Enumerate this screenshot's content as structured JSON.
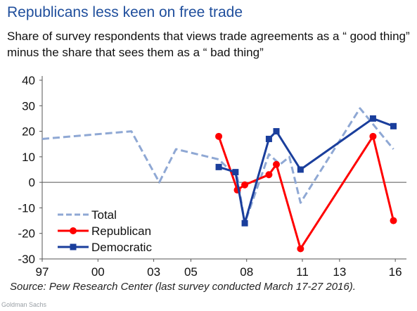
{
  "title": "Republicans less keen on free trade",
  "subtitle": "Share of survey respondents that views trade agreements as a “ good thing”  minus the share that sees them as a “ bad thing”",
  "source": "Source: Pew Research Center (last survey conducted March 17-27 2016).",
  "brand": "Goldman Sachs",
  "chart_data": {
    "type": "line",
    "title": "Republicans less keen on free trade",
    "xlabel": "",
    "ylabel": "",
    "xlim": [
      1997,
      2016.6
    ],
    "ylim": [
      -30,
      40
    ],
    "x_ticks": [
      1997,
      2000,
      2003,
      2005,
      2008,
      2011,
      2013,
      2016
    ],
    "x_tick_labels": [
      "97",
      "00",
      "03",
      "05",
      "08",
      "11",
      "13",
      "16"
    ],
    "y_ticks": [
      -30,
      -20,
      -10,
      0,
      10,
      20,
      30,
      40
    ],
    "y_tick_labels": [
      "-30",
      "-20",
      "-10",
      "0",
      "10",
      "20",
      "30",
      "40"
    ],
    "grid": false,
    "legend_position": "bottom-left",
    "series": [
      {
        "name": "Total",
        "style": "dashed",
        "color": "#8fa8d4",
        "marker": "none",
        "x": [
          1997,
          2001.8,
          2003.3,
          2004.2,
          2006.5,
          2007.5,
          2007.9,
          2009.2,
          2009.8,
          2010.3,
          2010.9,
          2014.1,
          2015.9
        ],
        "y": [
          17,
          20,
          0,
          13,
          9,
          2,
          -16,
          11,
          7,
          10,
          -8,
          29,
          13
        ]
      },
      {
        "name": "Republican",
        "style": "solid",
        "color": "#ff0000",
        "marker": "circle",
        "x": [
          2006.5,
          2007.5,
          2007.9,
          2009.2,
          2009.6,
          2010.9,
          2014.8,
          2015.9
        ],
        "y": [
          18,
          -3,
          -1,
          3,
          7,
          -26,
          18,
          -15
        ]
      },
      {
        "name": "Democratic",
        "style": "solid",
        "color": "#1a3e9c",
        "marker": "square",
        "x": [
          2006.5,
          2007.4,
          2007.9,
          2009.2,
          2009.6,
          2010.9,
          2014.8,
          2015.9
        ],
        "y": [
          6,
          4,
          -16,
          17,
          20,
          5,
          25,
          22
        ]
      }
    ]
  }
}
